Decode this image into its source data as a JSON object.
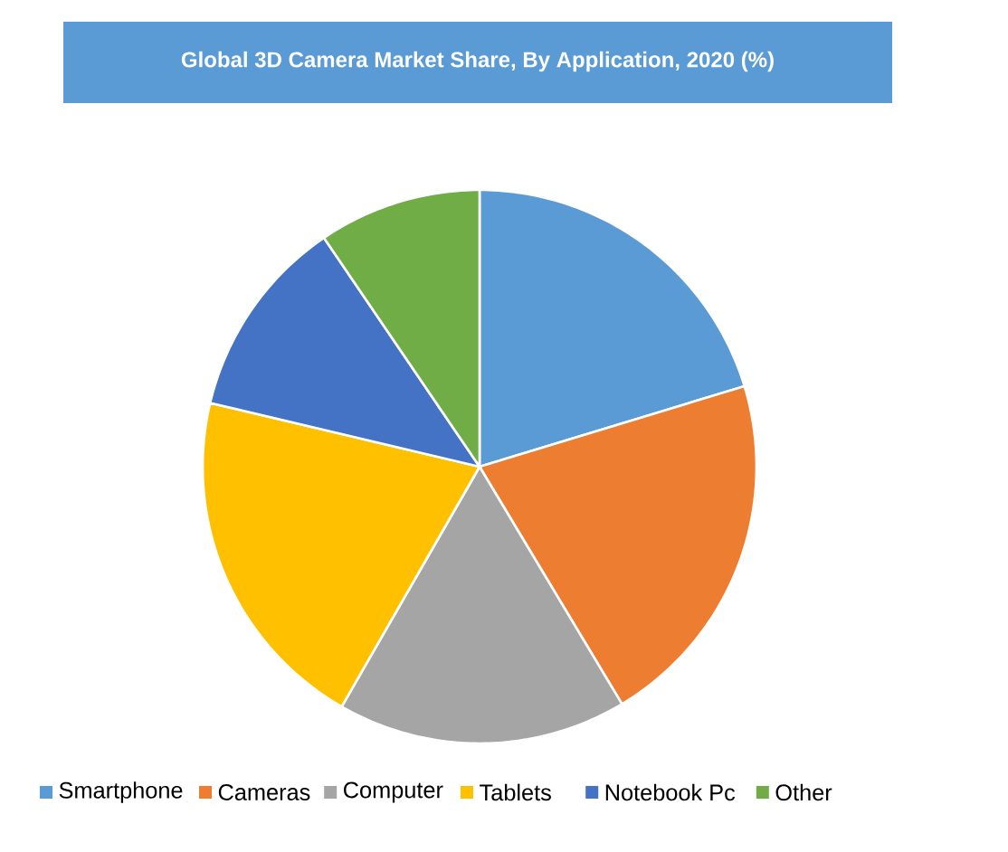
{
  "chart_data": {
    "type": "pie",
    "title": "Global 3D Camera Market Share, By Application, 2020 (%)",
    "categories": [
      "Smartphone",
      "Cameras",
      "Computer",
      "Tablets",
      "Notebook Pc",
      "Other"
    ],
    "values": [
      20.3,
      21.1,
      16.9,
      20.4,
      11.8,
      9.5
    ],
    "colors": [
      "#5b9bd5",
      "#ed7d31",
      "#a5a5a5",
      "#ffc000",
      "#4472c4",
      "#70ad47"
    ],
    "legend": "bottom"
  }
}
